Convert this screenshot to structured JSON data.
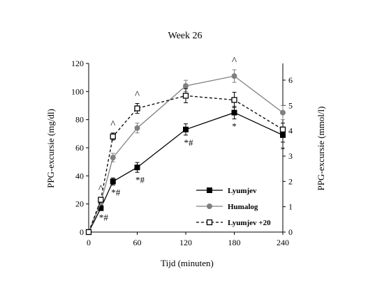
{
  "chart_data": {
    "type": "line",
    "title": "Week 26",
    "xlabel": "Tijd (minuten)",
    "ylabel": "PPG-excursie (mg/dl)",
    "y2label": "PPG-excursie (mmol/l)",
    "x": [
      0,
      15,
      30,
      60,
      120,
      180,
      240
    ],
    "xticks": [
      "0",
      "60",
      "120",
      "180",
      "240"
    ],
    "xlim": [
      0,
      240
    ],
    "ylim": [
      0,
      120
    ],
    "yticks": [
      "0",
      "20",
      "40",
      "60",
      "80",
      "100",
      "120"
    ],
    "y2lim": [
      0,
      6.66
    ],
    "y2ticks": [
      "0",
      "1",
      "2",
      "3",
      "4",
      "5",
      "6"
    ],
    "grid": false,
    "legend_position": "bottom-right",
    "series": [
      {
        "name": "Lyumjev",
        "color": "#000000",
        "line_style": "solid",
        "marker": "filled-square",
        "values": [
          0,
          17,
          36,
          46,
          73,
          85,
          69
        ],
        "error": [
          0,
          1.5,
          2.5,
          3.5,
          4,
          4.5,
          5
        ]
      },
      {
        "name": "Humalog",
        "color": "#808080",
        "line_style": "solid",
        "marker": "filled-circle",
        "values": [
          0,
          21,
          53,
          74,
          104,
          111,
          85
        ],
        "error": [
          0,
          1.5,
          3,
          3.5,
          4,
          4.5,
          5
        ]
      },
      {
        "name": "Lyumjev +20",
        "color": "#000000",
        "line_style": "dashed",
        "marker": "open-square",
        "values": [
          0,
          23,
          68,
          88,
          97,
          94,
          73
        ],
        "error": [
          0,
          1.5,
          2.5,
          3.5,
          5,
          5.5,
          4.5
        ]
      }
    ],
    "annotations": [
      {
        "text": "^",
        "x": 15,
        "series": "Lyumjev +20",
        "position": "above"
      },
      {
        "text": "^",
        "x": 30,
        "series": "Lyumjev +20",
        "position": "above"
      },
      {
        "text": "^",
        "x": 60,
        "series": "Lyumjev +20",
        "position": "above"
      },
      {
        "text": "^",
        "x": 180,
        "series": "Humalog",
        "position": "above"
      },
      {
        "text": "*#",
        "x": 15,
        "series": "Lyumjev",
        "position": "below"
      },
      {
        "text": "*#",
        "x": 30,
        "series": "Lyumjev",
        "position": "below"
      },
      {
        "text": "*#",
        "x": 60,
        "series": "Lyumjev",
        "position": "below"
      },
      {
        "text": "*#",
        "x": 120,
        "series": "Lyumjev",
        "position": "below"
      },
      {
        "text": "*",
        "x": 180,
        "series": "Lyumjev",
        "position": "below"
      },
      {
        "text": "*",
        "x": 240,
        "series": "Lyumjev",
        "position": "below"
      }
    ]
  }
}
